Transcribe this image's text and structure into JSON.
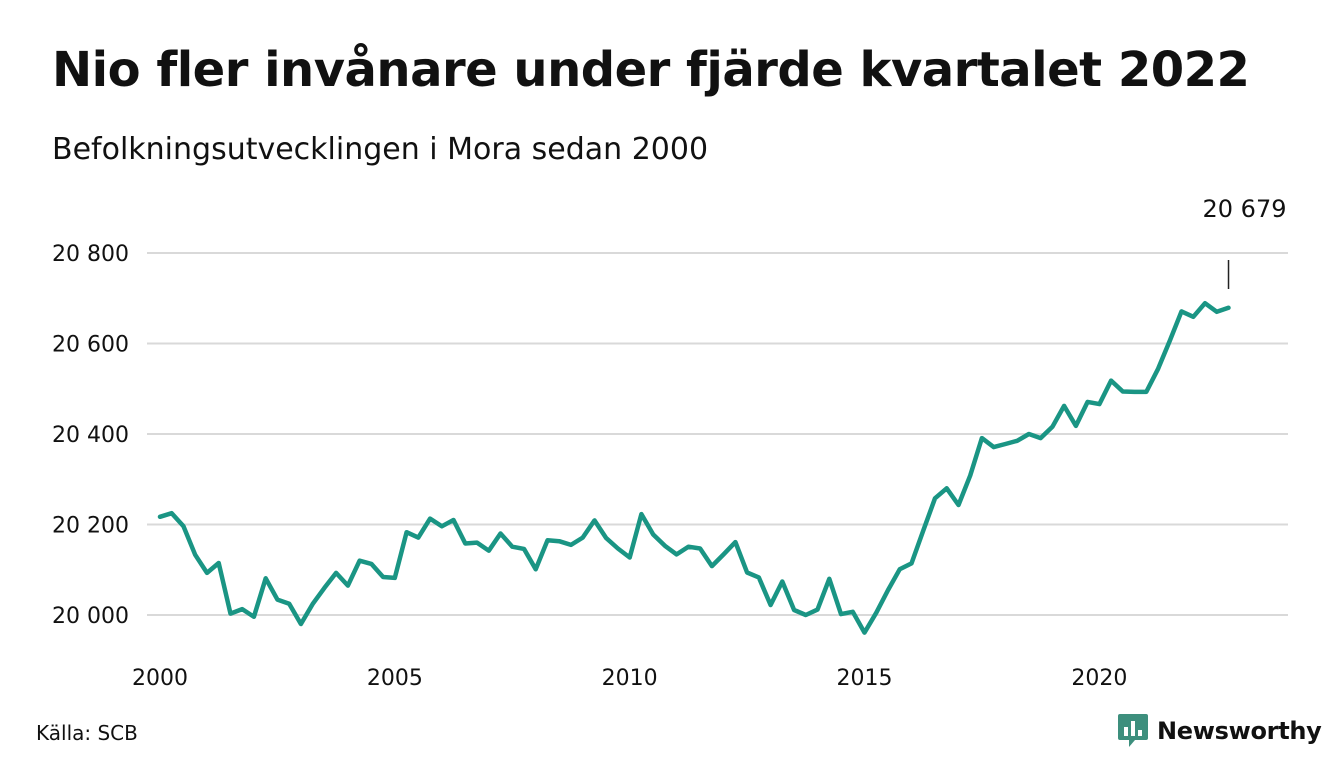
{
  "header": {
    "title": "Nio fler invånare under fjärde kvartalet 2022",
    "subtitle": "Befolkningsutvecklingen i Mora sedan 2000"
  },
  "footer": {
    "source": "Källa: SCB",
    "brand": "Newsworthy"
  },
  "colors": {
    "line": "#1a9584",
    "grid": "#d9d9d9",
    "text": "#111111",
    "brand_icon": "#3d8f7d",
    "brand_text": "#3d8f7d"
  },
  "chart_data": {
    "type": "line",
    "title": "Nio fler invånare under fjärde kvartalet 2022",
    "subtitle": "Befolkningsutvecklingen i Mora sedan 2000",
    "xlabel": "",
    "ylabel": "",
    "x_ticks": [
      2000,
      2005,
      2010,
      2015,
      2020
    ],
    "x_tick_labels": [
      "2000",
      "2005",
      "2010",
      "2015",
      "2020"
    ],
    "y_ticks": [
      20000,
      20200,
      20400,
      20600,
      20800
    ],
    "y_tick_labels": [
      "20 000",
      "20 200",
      "20 400",
      "20 600",
      "20 800"
    ],
    "xlim": [
      2000,
      2023.25
    ],
    "ylim": [
      19940,
      20830
    ],
    "grid": true,
    "legend": "none",
    "end_annotation": "20 679",
    "series": [
      {
        "values": [
          20217,
          20225,
          20196,
          20133,
          20093,
          20115,
          20003,
          20013,
          19996,
          20081,
          20034,
          20025,
          19980,
          20024,
          20060,
          20093,
          20065,
          20120,
          20113,
          20084,
          20082,
          20183,
          20171,
          20213,
          20196,
          20210,
          20158,
          20160,
          20142,
          20180,
          20151,
          20146,
          20101,
          20165,
          20163,
          20155,
          20171,
          20209,
          20170,
          20147,
          20127,
          20223,
          20178,
          20153,
          20134,
          20151,
          20147,
          20108,
          20134,
          20161,
          20094,
          20083,
          20022,
          20074,
          20011,
          20000,
          20012,
          20080,
          20002,
          20007,
          19961,
          20005,
          20055,
          20101,
          20114,
          20186,
          20258,
          20280,
          20243,
          20308,
          20391,
          20371,
          20378,
          20385,
          20400,
          20391,
          20416,
          20462,
          20418,
          20471,
          20466,
          20518,
          20494,
          20493,
          20493,
          20544,
          20606,
          20671,
          20659,
          20689,
          20670,
          20679
        ]
      }
    ]
  }
}
